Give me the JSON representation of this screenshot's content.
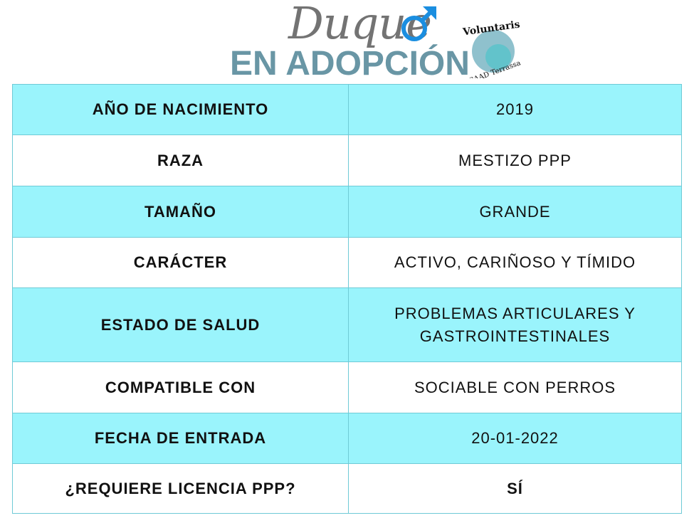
{
  "header": {
    "name": "Duque",
    "gender_icon": "male-symbol",
    "title": "EN ADOPCIÓN",
    "logo_text": [
      "Voluntaris",
      "CAAD Terrassa"
    ]
  },
  "colors": {
    "accent_row": "#9af4fc",
    "title": "#6996a5",
    "male": "#1a8ee0"
  },
  "rows": [
    {
      "label": "AÑO DE NACIMIENTO",
      "value": "2019"
    },
    {
      "label": "RAZA",
      "value": "MESTIZO PPP"
    },
    {
      "label": "TAMAÑO",
      "value": "GRANDE"
    },
    {
      "label": "CARÁCTER",
      "value": "ACTIVO, CARIÑOSO Y TÍMIDO"
    },
    {
      "label": "ESTADO DE SALUD",
      "value": "PROBLEMAS ARTICULARES Y GASTROINTESTINALES"
    },
    {
      "label": "COMPATIBLE CON",
      "value": "SOCIABLE CON PERROS"
    },
    {
      "label": "FECHA DE ENTRADA",
      "value": "20-01-2022"
    },
    {
      "label": "¿REQUIERE LICENCIA PPP?",
      "value": "SÍ"
    }
  ]
}
